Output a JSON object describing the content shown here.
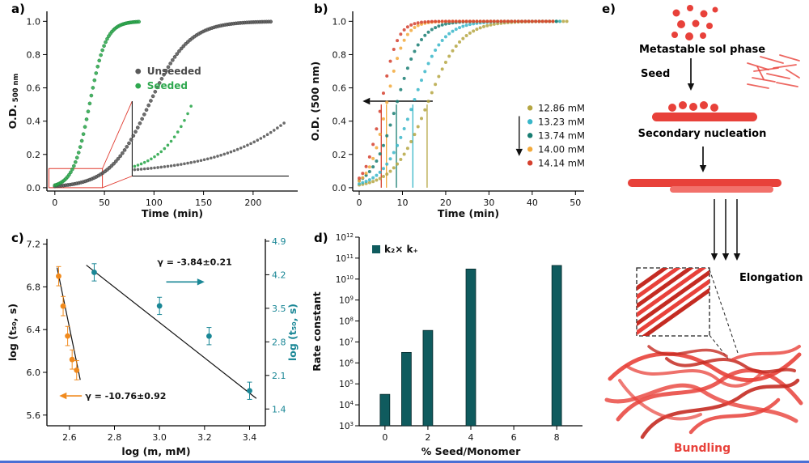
{
  "figure": {
    "background": "#ffffff",
    "bottom_rule_color": "#4a6fd4"
  },
  "panels": {
    "a": {
      "label": "a)"
    },
    "b": {
      "label": "b)"
    },
    "c": {
      "label": "c)"
    },
    "d": {
      "label": "d)"
    },
    "e": {
      "label": "e)"
    }
  },
  "chart_data": [
    {
      "id": "a",
      "type": "scatter",
      "xlabel": "Time (min)",
      "ylabel": "O.D.",
      "ylabel_sub": "500 nm",
      "xlim": [
        -8,
        245
      ],
      "ylim": [
        -0.02,
        1.06
      ],
      "xticks": [
        0,
        50,
        100,
        150,
        200
      ],
      "yticks": [
        0,
        0.2,
        0.4,
        0.6,
        0.8,
        1
      ],
      "series": [
        {
          "name": "Unseeded",
          "color": "#5a5a5a",
          "edge": "#2e2e2e",
          "label_color": "#4a4a4a",
          "sigmoid": {
            "t50": 95,
            "k": 0.05,
            "max": 1
          },
          "range": [
            0,
            218
          ],
          "step": 2.2
        },
        {
          "name": "Seeded",
          "color": "#2fa84f",
          "edge": "#0f7a2f",
          "label_color": "#2fa84f",
          "sigmoid": {
            "t50": 35,
            "k": 0.12,
            "max": 1
          },
          "range": [
            0,
            86
          ],
          "step": 1.6
        }
      ],
      "legend_pos": [
        84,
        0.68
      ],
      "inset": {
        "box_x": [
          -6,
          48
        ],
        "box_y": [
          0,
          0.115
        ],
        "axes_x": [
          78,
          236
        ],
        "axes_y": [
          0.07,
          0.52
        ],
        "color": "#e0392e"
      }
    },
    {
      "id": "b",
      "type": "scatter",
      "xlabel": "Time (min)",
      "ylabel": "O.D. (500 nm)",
      "xlim": [
        -1.5,
        52
      ],
      "ylim": [
        -0.02,
        1.06
      ],
      "xticks": [
        0,
        10,
        20,
        30,
        40,
        50
      ],
      "yticks": [
        0,
        0.2,
        0.4,
        0.6,
        0.8,
        1
      ],
      "half_od": 0.5,
      "arrow_from_x": 17,
      "arrow_to_x": 0.8,
      "t50_lines": [
        15.7,
        12.4,
        8.6,
        6.3,
        5.1
      ],
      "series": [
        {
          "name": "12.86 mM",
          "color": "#b5a642",
          "t50": 15.7,
          "k": 0.26,
          "range": [
            0,
            48
          ],
          "step": 0.8
        },
        {
          "name": "13.23 mM",
          "color": "#38b6c9",
          "t50": 12.4,
          "k": 0.3,
          "range": [
            0,
            47
          ],
          "step": 0.8
        },
        {
          "name": "13.74 mM",
          "color": "#177d72",
          "t50": 8.6,
          "k": 0.36,
          "range": [
            0,
            46
          ],
          "step": 0.8
        },
        {
          "name": "14.00 mM",
          "color": "#f2a93b",
          "t50": 6.3,
          "k": 0.5,
          "range": [
            0,
            45
          ],
          "step": 0.8
        },
        {
          "name": "14.14 mM",
          "color": "#d5402e",
          "t50": 5.1,
          "k": 0.55,
          "range": [
            0,
            45
          ],
          "step": 0.8
        }
      ],
      "legend_pos": [
        39.5,
        0.46
      ],
      "legend_arrow": {
        "x": 37,
        "y_from": 0.43,
        "y_to": 0.19
      }
    },
    {
      "id": "c",
      "type": "scatter-dual-axis",
      "xlabel": "log (m, mM)",
      "xlim": [
        2.5,
        3.47
      ],
      "xticks": [
        2.6,
        2.8,
        3.0,
        3.2,
        3.4
      ],
      "left": {
        "ylabel": "log (t₅₀, s)",
        "color": "#f08a1d",
        "ylim": [
          5.5,
          7.25
        ],
        "yticks": [
          5.6,
          6.0,
          6.4,
          6.8,
          7.2
        ],
        "yerr": 0.09,
        "points": [
          [
            2.552,
            6.9
          ],
          [
            2.572,
            6.62
          ],
          [
            2.592,
            6.34
          ],
          [
            2.612,
            6.12
          ],
          [
            2.632,
            6.02
          ]
        ],
        "fit": [
          [
            2.545,
            6.98
          ],
          [
            2.648,
            5.93
          ]
        ],
        "gamma_text": "γ = -10.76±0.92",
        "gamma_pos": [
          2.67,
          5.78
        ],
        "arrow": {
          "x_from": 2.655,
          "x_to": 2.555,
          "y": 5.78
        }
      },
      "right": {
        "ylabel": "log (t₅₀, s)",
        "color": "#1a8796",
        "ylim": [
          1.05,
          4.95
        ],
        "yticks": [
          1.4,
          2.1,
          2.8,
          3.5,
          4.2,
          4.9
        ],
        "yerr": 0.18,
        "points": [
          [
            2.71,
            4.25
          ],
          [
            3.0,
            3.55
          ],
          [
            3.22,
            2.92
          ],
          [
            3.4,
            1.78
          ]
        ],
        "fit": [
          [
            2.675,
            4.4
          ],
          [
            3.43,
            1.62
          ]
        ],
        "gamma_text": "γ = -3.84±0.21",
        "gamma_pos": [
          2.99,
          4.4
        ],
        "arrow": {
          "x_from": 3.03,
          "x_to": 3.2,
          "y": 4.05
        }
      }
    },
    {
      "id": "d",
      "type": "bar",
      "xlabel": "% Seed/Monomer",
      "ylabel": "Rate constant",
      "legend": "k₂× k₊",
      "bar_color": "#0f5b5e",
      "xlim": [
        -1.2,
        9.2
      ],
      "xticks": [
        0,
        2,
        4,
        6,
        8
      ],
      "y_exponent_range": [
        3,
        12
      ],
      "ytick_exponents": [
        3,
        4,
        5,
        6,
        7,
        8,
        9,
        10,
        11,
        12
      ],
      "bar_width": 0.45,
      "bars": [
        {
          "x": 0,
          "exp": 4.5
        },
        {
          "x": 1,
          "exp": 6.5
        },
        {
          "x": 2,
          "exp": 7.55
        },
        {
          "x": 4,
          "exp": 10.48
        },
        {
          "x": 8,
          "exp": 10.65
        }
      ]
    }
  ],
  "diagram_e": {
    "red": "#e8413a",
    "dark_red": "#c42b22",
    "light_red": "#f2716b",
    "labels": {
      "metastable": "Metastable sol phase",
      "seed": "Seed",
      "secondary": "Secondary nucleation",
      "elongation": "Elongation",
      "bundling": "Bundling"
    }
  }
}
